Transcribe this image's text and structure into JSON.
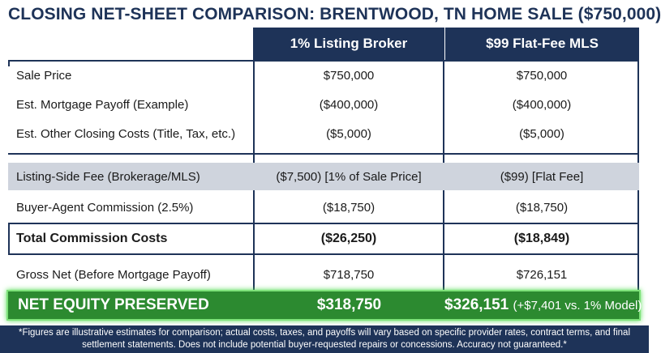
{
  "title": "CLOSING NET-SHEET COMPARISON: BRENTWOOD, TN HOME SALE ($750,000)",
  "columns": [
    "1% Listing Broker",
    "$99 Flat-Fee MLS"
  ],
  "rows": [
    {
      "label": "Sale Price",
      "c1": "$750,000",
      "c2": "$750,000"
    },
    {
      "label": "Est. Mortgage Payoff (Example)",
      "c1": "($400,000)",
      "c2": "($400,000)"
    },
    {
      "label": "Est. Other Closing Costs (Title, Tax, etc.)",
      "c1": "($5,000)",
      "c2": "($5,000)"
    },
    {
      "label": "Listing-Side Fee (Brokerage/MLS)",
      "c1": "($7,500) [1% of Sale Price]",
      "c2": "($99) [Flat Fee]"
    },
    {
      "label": "Buyer-Agent Commission (2.5%)",
      "c1": "($18,750)",
      "c2": "($18,750)"
    },
    {
      "label": "Total Commission Costs",
      "c1": "($26,250)",
      "c2": "($18,849)"
    },
    {
      "label": "Gross Net (Before Mortgage Payoff)",
      "c1": "$718,750",
      "c2": "$726,151"
    }
  ],
  "net": {
    "label": "NET EQUITY PRESERVED",
    "c1": "$318,750",
    "c2_value": "$326,151",
    "c2_note": "(+$7,401 vs. 1% Model)"
  },
  "footer": "*Figures are illustrative estimates for comparison; actual costs, taxes, and payoffs will vary based on specific provider rates, contract terms, and final settlement statements. Does not include potential buyer-requested repairs or concessions. Accuracy not guaranteed.*",
  "colors": {
    "navy": "#1e3358",
    "shade": "#cfd4dd",
    "green": "#2c8a30",
    "glow": "#7ee27a"
  }
}
